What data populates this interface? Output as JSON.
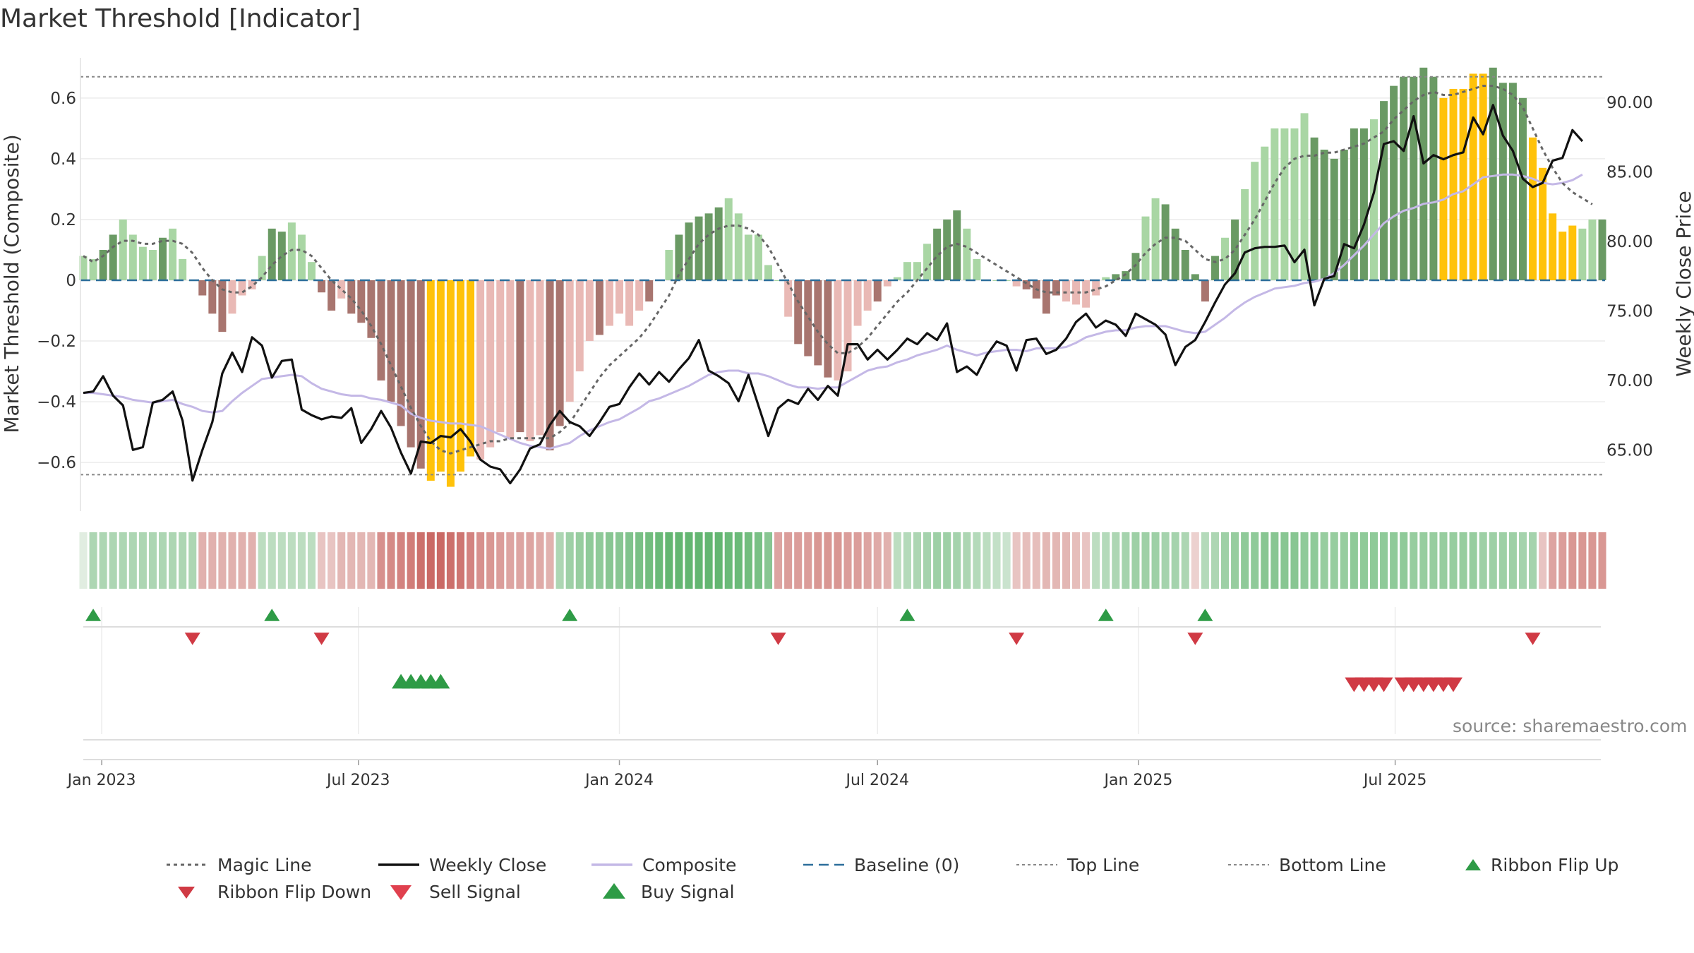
{
  "title": "Market Threshold [Indicator]",
  "source": "source: sharemaestro.com",
  "colors": {
    "magic": "#666666",
    "weekly": "#111111",
    "composite": "#c4b8e6",
    "baseline": "#2c6e9b",
    "thresholds": "#888888",
    "buy": "#2e9b46",
    "sell": "#d03a44",
    "flip_up": "#2e9b46",
    "flip_down": "#d03a44",
    "bar_strong_pos": "#6a9a64",
    "bar_weak_pos": "#a9d6a4",
    "bar_strong_neg": "#a8756f",
    "bar_weak_neg": "#e9b9b5",
    "bar_extreme": "#ffc20a"
  },
  "chart_data": {
    "type": "bar",
    "title": "Market Threshold [Indicator]",
    "ylabel": "Market Threshold (Composite)",
    "ylabel_right": "Weekly Close Price",
    "ylim": [
      -0.76,
      0.76
    ],
    "ylim_right": [
      60.6,
      93.8
    ],
    "yticks": [
      -0.6,
      -0.4,
      -0.2,
      0,
      0.2,
      0.4,
      0.6
    ],
    "yticks_right": [
      65,
      70,
      75,
      80,
      85,
      90
    ],
    "ytick_labels": [
      "−0.6",
      "−0.4",
      "−0.2",
      "0",
      "0.2",
      "0.4",
      "0.6"
    ],
    "ytick_labels_right": [
      "65.00",
      "70.00",
      "75.00",
      "80.00",
      "85.00",
      "90.00"
    ],
    "x_start": "2022-12-19",
    "week_labels_note": "weekly bars",
    "xticks": [
      {
        "date": "2023-01-01",
        "label": "Jan 2023"
      },
      {
        "date": "2023-07-01",
        "label": "Jul 2023"
      },
      {
        "date": "2024-01-01",
        "label": "Jan 2024"
      },
      {
        "date": "2024-07-01",
        "label": "Jul 2024"
      },
      {
        "date": "2025-01-01",
        "label": "Jan 2025"
      },
      {
        "date": "2025-07-01",
        "label": "Jul 2025"
      }
    ],
    "top_line": 0.67,
    "bottom_line": -0.64,
    "baseline": 0,
    "grid": true,
    "legend_position": "bottom",
    "composite_bars": [
      0.08,
      0.07,
      0.1,
      0.15,
      0.2,
      0.15,
      0.11,
      0.1,
      0.14,
      0.17,
      0.07,
      0.0,
      -0.05,
      -0.11,
      -0.17,
      -0.11,
      -0.05,
      -0.03,
      0.08,
      0.17,
      0.16,
      0.19,
      0.15,
      0.06,
      -0.04,
      -0.1,
      -0.06,
      -0.11,
      -0.14,
      -0.19,
      -0.33,
      -0.4,
      -0.48,
      -0.55,
      -0.62,
      -0.66,
      -0.63,
      -0.68,
      -0.63,
      -0.58,
      -0.59,
      -0.55,
      -0.5,
      -0.52,
      -0.5,
      -0.53,
      -0.51,
      -0.56,
      -0.48,
      -0.4,
      -0.3,
      -0.2,
      -0.18,
      -0.15,
      -0.11,
      -0.15,
      -0.1,
      -0.07,
      0.0,
      0.1,
      0.15,
      0.19,
      0.21,
      0.22,
      0.24,
      0.27,
      0.22,
      0.15,
      0.15,
      0.05,
      0.0,
      -0.12,
      -0.21,
      -0.25,
      -0.28,
      -0.32,
      -0.33,
      -0.3,
      -0.15,
      -0.1,
      -0.07,
      -0.02,
      0.01,
      0.06,
      0.06,
      0.12,
      0.17,
      0.2,
      0.23,
      0.17,
      0.07,
      0.0,
      0.0,
      0.0,
      -0.02,
      -0.03,
      -0.06,
      -0.11,
      -0.05,
      -0.07,
      -0.08,
      -0.09,
      -0.05,
      0.01,
      0.02,
      0.03,
      0.09,
      0.21,
      0.27,
      0.25,
      0.17,
      0.1,
      0.02,
      -0.07,
      0.08,
      0.14,
      0.2,
      0.3,
      0.39,
      0.44,
      0.5,
      0.5,
      0.5,
      0.55,
      0.47,
      0.43,
      0.4,
      0.43,
      0.5,
      0.5,
      0.53,
      0.59,
      0.64,
      0.67,
      0.67,
      0.7,
      0.67,
      0.6,
      0.63,
      0.63,
      0.68,
      0.68,
      0.7,
      0.65,
      0.65,
      0.6,
      0.47,
      0.37,
      0.22,
      0.16,
      0.18,
      0.17,
      0.2,
      0.2
    ],
    "bar_classes": "wwsswwwwswwwssswwwwsswwwsswsssssssseeeeewwwwswwsswwwswwwwsswssssswwwwwwwsssswwwwswwwwwssswwwwwwsssswwwwwssswwsssssswswwwwwwwsssssswsssssseeeeesssseeeeewwswwsw",
    "magic_line": [
      0.08,
      0.06,
      0.08,
      0.11,
      0.13,
      0.13,
      0.12,
      0.12,
      0.13,
      0.13,
      0.12,
      0.09,
      0.04,
      0.0,
      -0.03,
      -0.04,
      -0.04,
      -0.02,
      0.01,
      0.05,
      0.08,
      0.1,
      0.1,
      0.08,
      0.04,
      0.0,
      -0.03,
      -0.06,
      -0.1,
      -0.15,
      -0.21,
      -0.28,
      -0.35,
      -0.42,
      -0.48,
      -0.53,
      -0.56,
      -0.57,
      -0.56,
      -0.55,
      -0.54,
      -0.53,
      -0.53,
      -0.52,
      -0.52,
      -0.52,
      -0.52,
      -0.52,
      -0.5,
      -0.47,
      -0.42,
      -0.37,
      -0.32,
      -0.28,
      -0.25,
      -0.22,
      -0.19,
      -0.15,
      -0.1,
      -0.05,
      0.02,
      0.07,
      0.12,
      0.15,
      0.17,
      0.18,
      0.18,
      0.17,
      0.15,
      0.11,
      0.05,
      -0.01,
      -0.07,
      -0.12,
      -0.17,
      -0.21,
      -0.24,
      -0.24,
      -0.22,
      -0.19,
      -0.15,
      -0.11,
      -0.07,
      -0.04,
      0.0,
      0.04,
      0.08,
      0.11,
      0.12,
      0.11,
      0.09,
      0.07,
      0.05,
      0.03,
      0.01,
      -0.01,
      -0.03,
      -0.04,
      -0.04,
      -0.04,
      -0.04,
      -0.04,
      -0.03,
      -0.02,
      0.0,
      0.02,
      0.05,
      0.09,
      0.12,
      0.14,
      0.14,
      0.13,
      0.1,
      0.07,
      0.06,
      0.07,
      0.1,
      0.15,
      0.2,
      0.26,
      0.32,
      0.37,
      0.4,
      0.41,
      0.41,
      0.42,
      0.42,
      0.43,
      0.44,
      0.45,
      0.47,
      0.49,
      0.53,
      0.56,
      0.59,
      0.61,
      0.62,
      0.61,
      0.61,
      0.62,
      0.63,
      0.64,
      0.64,
      0.63,
      0.61,
      0.57,
      0.5,
      0.43,
      0.37,
      0.32,
      0.29,
      0.27,
      0.25
    ],
    "weekly_close": [
      69.1,
      69.2,
      70.3,
      68.9,
      68.2,
      65.0,
      65.2,
      68.4,
      68.6,
      69.2,
      67.1,
      62.8,
      65.0,
      67.0,
      70.5,
      72.0,
      70.6,
      73.1,
      72.5,
      70.2,
      71.4,
      71.5,
      67.9,
      67.5,
      67.2,
      67.4,
      67.3,
      68.0,
      65.5,
      66.5,
      67.8,
      66.6,
      64.8,
      63.3,
      65.6,
      65.5,
      66.0,
      65.9,
      66.5,
      65.6,
      64.3,
      63.8,
      63.6,
      62.6,
      63.6,
      65.1,
      65.4,
      66.8,
      67.8,
      67.0,
      66.7,
      66.0,
      67.0,
      68.1,
      68.3,
      69.5,
      70.5,
      69.7,
      70.6,
      69.9,
      70.8,
      71.6,
      72.9,
      70.7,
      70.3,
      69.8,
      68.5,
      70.4,
      68.2,
      66.0,
      68.0,
      68.6,
      68.3,
      69.4,
      68.6,
      69.6,
      68.9,
      72.6,
      72.6,
      71.5,
      72.2,
      71.5,
      72.2,
      73.0,
      72.6,
      73.4,
      72.9,
      74.1,
      70.6,
      71.0,
      70.4,
      71.8,
      72.8,
      72.5,
      70.7,
      72.9,
      73.0,
      71.9,
      72.2,
      73.0,
      74.2,
      74.8,
      73.8,
      74.3,
      74.0,
      73.2,
      74.8,
      74.4,
      74.0,
      73.3,
      71.1,
      72.4,
      72.9,
      74.2,
      75.6,
      76.9,
      77.7,
      79.2,
      79.5,
      79.6,
      79.6,
      79.7,
      78.5,
      79.4,
      75.4,
      77.3,
      77.5,
      79.8,
      79.5,
      81.2,
      83.5,
      87.0,
      87.2,
      86.5,
      89.0,
      85.6,
      86.2,
      85.9,
      86.2,
      86.4,
      88.9,
      87.7,
      89.8,
      87.6,
      86.5,
      84.5,
      83.9,
      84.2,
      85.8,
      86.0,
      88.0,
      87.2
    ],
    "composite_line": [
      69.1,
      69.1,
      69.0,
      68.9,
      68.8,
      68.6,
      68.5,
      68.4,
      68.5,
      68.6,
      68.3,
      68.1,
      67.8,
      67.7,
      67.8,
      68.5,
      69.1,
      69.6,
      70.1,
      70.2,
      70.3,
      70.4,
      70.3,
      69.8,
      69.4,
      69.2,
      69.0,
      68.9,
      68.9,
      68.7,
      68.6,
      68.4,
      68.2,
      67.6,
      67.3,
      67.1,
      67.0,
      66.9,
      66.9,
      66.8,
      66.7,
      66.4,
      66.1,
      65.8,
      65.5,
      65.3,
      65.2,
      65.1,
      65.3,
      65.5,
      66.0,
      66.4,
      66.7,
      67.0,
      67.2,
      67.6,
      68.0,
      68.5,
      68.7,
      69.0,
      69.3,
      69.6,
      70.0,
      70.4,
      70.6,
      70.7,
      70.7,
      70.5,
      70.5,
      70.3,
      70.0,
      69.7,
      69.5,
      69.5,
      69.4,
      69.5,
      69.5,
      69.9,
      70.3,
      70.7,
      70.9,
      71.0,
      71.3,
      71.5,
      71.8,
      72.0,
      72.2,
      72.5,
      72.2,
      72.0,
      71.8,
      72.0,
      72.1,
      72.2,
      72.2,
      72.1,
      72.3,
      72.3,
      72.3,
      72.4,
      72.7,
      73.1,
      73.3,
      73.5,
      73.6,
      73.6,
      73.8,
      73.9,
      73.9,
      73.9,
      73.7,
      73.5,
      73.4,
      73.5,
      74.0,
      74.5,
      75.1,
      75.6,
      76.0,
      76.3,
      76.6,
      76.7,
      76.8,
      77.0,
      77.1,
      77.3,
      77.7,
      78.3,
      79.0,
      79.7,
      80.5,
      81.3,
      81.8,
      82.2,
      82.4,
      82.7,
      82.8,
      83.0,
      83.4,
      83.6,
      84.1,
      84.6,
      84.7,
      84.8,
      84.8,
      84.7,
      84.5,
      84.2,
      84.1,
      84.2,
      84.4,
      84.8
    ],
    "ribbon": [
      0.05,
      0.4,
      0.4,
      0.4,
      0.4,
      0.4,
      0.4,
      0.4,
      0.4,
      0.4,
      0.4,
      0.4,
      -0.35,
      -0.35,
      -0.35,
      -0.35,
      -0.35,
      -0.35,
      0.3,
      0.3,
      0.3,
      0.3,
      0.3,
      0.3,
      -0.2,
      -0.2,
      -0.3,
      -0.3,
      -0.3,
      -0.3,
      -0.6,
      -0.65,
      -0.7,
      -0.75,
      -0.85,
      -0.9,
      -0.9,
      -0.85,
      -0.8,
      -0.7,
      -0.6,
      -0.55,
      -0.5,
      -0.45,
      -0.45,
      -0.45,
      -0.4,
      -0.35,
      0.4,
      0.5,
      0.55,
      0.6,
      0.6,
      0.65,
      0.65,
      0.7,
      0.75,
      0.8,
      0.85,
      0.9,
      0.9,
      0.9,
      0.9,
      0.9,
      0.9,
      0.85,
      0.85,
      0.8,
      0.75,
      0.65,
      -0.45,
      -0.5,
      -0.5,
      -0.5,
      -0.55,
      -0.55,
      -0.55,
      -0.5,
      -0.5,
      -0.45,
      -0.4,
      -0.35,
      0.3,
      0.35,
      0.4,
      0.45,
      0.5,
      0.5,
      0.45,
      0.4,
      0.35,
      0.3,
      0.25,
      0.2,
      -0.2,
      -0.25,
      -0.25,
      -0.3,
      -0.3,
      -0.3,
      -0.25,
      -0.2,
      0.3,
      0.35,
      0.4,
      0.45,
      0.5,
      0.5,
      0.5,
      0.45,
      0.45,
      0.4,
      -0.1,
      0.35,
      0.4,
      0.5,
      0.55,
      0.6,
      0.6,
      0.65,
      0.65,
      0.65,
      0.65,
      0.6,
      0.6,
      0.55,
      0.55,
      0.55,
      0.6,
      0.6,
      0.6,
      0.6,
      0.6,
      0.6,
      0.55,
      0.55,
      0.55,
      0.55,
      0.55,
      0.55,
      0.55,
      0.5,
      0.5,
      0.5,
      0.5,
      0.45,
      0.45,
      -0.2,
      -0.45,
      -0.5,
      -0.55,
      -0.55,
      -0.55,
      -0.55
    ],
    "ribbon_flip_up": [
      1,
      19,
      49,
      83,
      103,
      113
    ],
    "ribbon_flip_down": [
      11,
      24,
      70,
      94,
      112,
      146
    ],
    "buy_signals": [
      32,
      33,
      34,
      35,
      36
    ],
    "sell_signals": [
      128,
      129,
      130,
      131,
      133,
      134,
      135,
      136,
      137,
      138
    ]
  },
  "legend": [
    {
      "label": "Magic Line",
      "kind": "dotted",
      "color": "#666666"
    },
    {
      "label": "Weekly Close",
      "kind": "solid",
      "color": "#111111"
    },
    {
      "label": "Composite",
      "kind": "solid",
      "color": "#c4b8e6"
    },
    {
      "label": "Baseline (0)",
      "kind": "dashed",
      "color": "#2c6e9b"
    },
    {
      "label": "Top Line",
      "kind": "dotted-thin",
      "color": "#888888"
    },
    {
      "label": "Bottom Line",
      "kind": "dotted-thin",
      "color": "#888888"
    },
    {
      "label": "Ribbon Flip Up",
      "kind": "tri-up-small",
      "color": "#2e9b46"
    },
    {
      "label": "Ribbon Flip Down",
      "kind": "tri-down-small",
      "color": "#d03a44"
    },
    {
      "label": "Sell Signal",
      "kind": "tri-down",
      "color": "#e0404e"
    },
    {
      "label": "Buy Signal",
      "kind": "tri-up",
      "color": "#2e9b46"
    }
  ]
}
